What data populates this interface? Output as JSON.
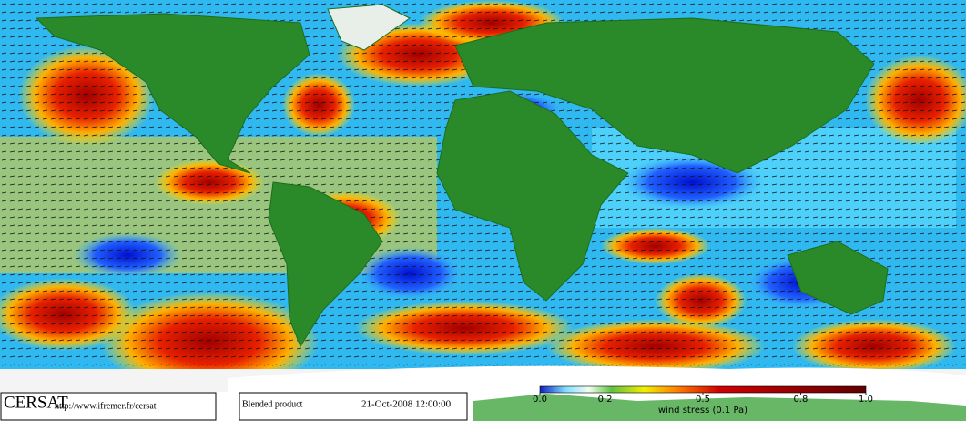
{
  "brand": "CERSAT",
  "url": "http://www.ifremer.fr/cersat",
  "product": "Blended product",
  "datetime": "21-Oct-2008 12:00:00",
  "colorbar": {
    "label": "wind stress (0.1 Pa)",
    "lim": [
      0,
      1
    ],
    "ticks": [
      {
        "value": 0,
        "label": "0.0"
      },
      {
        "value": 0.2,
        "label": "0.2"
      },
      {
        "value": 0.5,
        "label": "0.5"
      },
      {
        "value": 0.8,
        "label": "0.8"
      },
      {
        "value": 1,
        "label": "1.0"
      }
    ]
  }
}
